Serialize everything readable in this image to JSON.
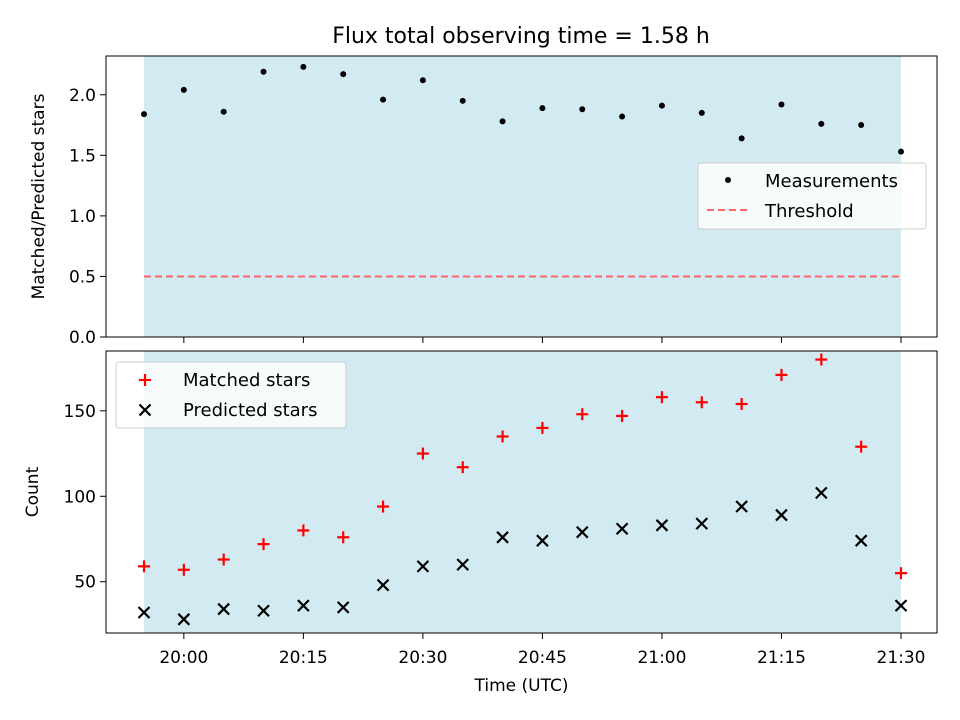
{
  "chart_data": [
    {
      "type": "scatter",
      "title": "Flux total observing time = 1.58 h",
      "xlabel": "",
      "ylabel": "Matched/Predicted stars",
      "ylim": [
        0,
        2.32
      ],
      "yticks": [
        "0.0",
        "0.5",
        "1.0",
        "1.5",
        "2.0"
      ],
      "shaded_span": [
        "19:55",
        "21:30"
      ],
      "shade_color": "#add8e6",
      "grid": false,
      "legend_position": "center-right",
      "x": [
        "19:55",
        "20:00",
        "20:05",
        "20:10",
        "20:15",
        "20:20",
        "20:25",
        "20:30",
        "20:35",
        "20:40",
        "20:45",
        "20:50",
        "20:55",
        "21:00",
        "21:05",
        "21:10",
        "21:15",
        "21:20",
        "21:25",
        "21:30"
      ],
      "series": [
        {
          "name": "Measurements",
          "marker": "dot",
          "color": "#000000",
          "values": [
            1.84,
            2.04,
            1.86,
            2.19,
            2.23,
            2.17,
            1.96,
            2.12,
            1.95,
            1.78,
            1.89,
            1.88,
            1.82,
            1.91,
            1.85,
            1.64,
            1.92,
            1.76,
            1.75,
            1.53
          ]
        },
        {
          "name": "Threshold",
          "marker": "dashed-line",
          "color": "#ff6666",
          "values": [
            0.5,
            0.5
          ]
        }
      ]
    },
    {
      "type": "scatter",
      "title": "",
      "xlabel": "Time (UTC)",
      "ylabel": "Count",
      "ylim": [
        20,
        185
      ],
      "yticks": [
        "50",
        "100",
        "150"
      ],
      "xticks": [
        "20:00",
        "20:15",
        "20:30",
        "20:45",
        "21:00",
        "21:15",
        "21:30"
      ],
      "shaded_span": [
        "19:55",
        "21:30"
      ],
      "shade_color": "#add8e6",
      "grid": false,
      "legend_position": "top-left",
      "x": [
        "19:55",
        "20:00",
        "20:05",
        "20:10",
        "20:15",
        "20:20",
        "20:25",
        "20:30",
        "20:35",
        "20:40",
        "20:45",
        "20:50",
        "20:55",
        "21:00",
        "21:05",
        "21:10",
        "21:15",
        "21:20",
        "21:25",
        "21:30"
      ],
      "series": [
        {
          "name": "Matched stars",
          "marker": "plus",
          "color": "#ff0000",
          "values": [
            59,
            57,
            63,
            72,
            80,
            76,
            94,
            125,
            117,
            135,
            140,
            148,
            147,
            158,
            155,
            154,
            171,
            180,
            129,
            55
          ]
        },
        {
          "name": "Predicted stars",
          "marker": "x",
          "color": "#000000",
          "values": [
            32,
            28,
            34,
            33,
            36,
            35,
            48,
            59,
            60,
            76,
            74,
            79,
            81,
            83,
            84,
            94,
            89,
            102,
            74,
            36
          ]
        }
      ]
    }
  ]
}
